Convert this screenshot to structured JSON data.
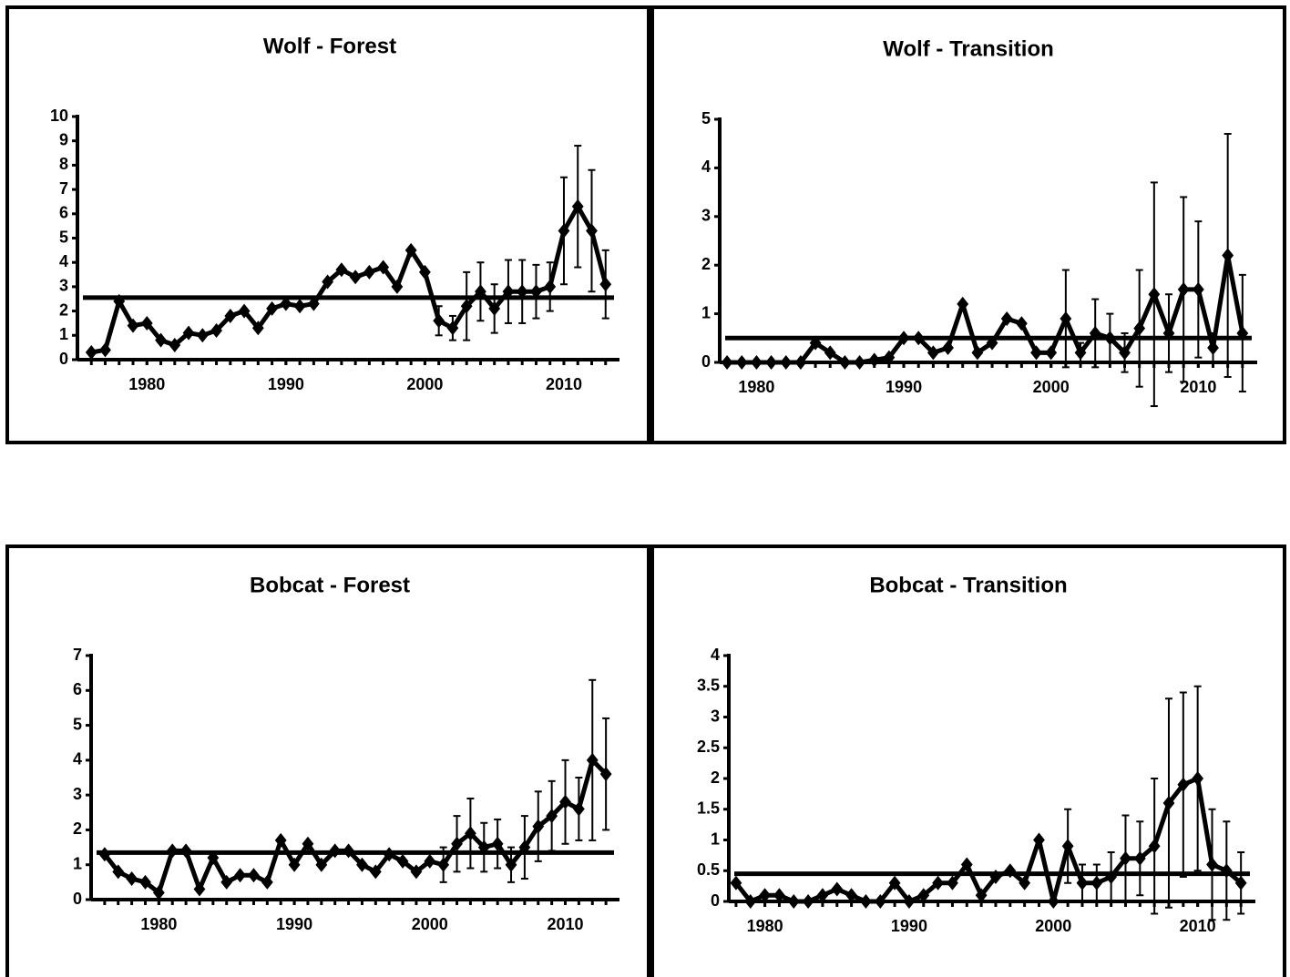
{
  "chart_data": [
    {
      "type": "line",
      "title": "Wolf - Forest",
      "color": "#000000",
      "x": [
        1976,
        1977,
        1978,
        1979,
        1980,
        1981,
        1982,
        1983,
        1984,
        1985,
        1986,
        1987,
        1988,
        1989,
        1990,
        1991,
        1992,
        1993,
        1994,
        1995,
        1996,
        1997,
        1998,
        1999,
        2000,
        2001,
        2002,
        2003,
        2004,
        2005,
        2006,
        2007,
        2008,
        2009,
        2010,
        2011,
        2012,
        2013
      ],
      "values": [
        0.3,
        0.4,
        2.4,
        1.4,
        1.5,
        0.8,
        0.6,
        1.1,
        1.0,
        1.2,
        1.8,
        2.0,
        1.3,
        2.1,
        2.3,
        2.2,
        2.3,
        3.2,
        3.7,
        3.4,
        3.6,
        3.8,
        3.0,
        4.5,
        3.6,
        1.6,
        1.3,
        2.2,
        2.8,
        2.1,
        2.8,
        2.8,
        2.8,
        3.0,
        5.3,
        6.3,
        5.3,
        3.1
      ],
      "errors": [
        null,
        null,
        null,
        null,
        null,
        null,
        null,
        null,
        null,
        null,
        null,
        null,
        null,
        null,
        null,
        null,
        null,
        null,
        null,
        null,
        null,
        null,
        null,
        null,
        null,
        0.6,
        0.5,
        1.4,
        1.2,
        1.0,
        1.3,
        1.3,
        1.1,
        1.0,
        2.2,
        2.5,
        2.5,
        1.4
      ],
      "mean": 2.55,
      "xlim": [
        1975,
        2014
      ],
      "xticks": [
        1980,
        1990,
        2000,
        2010
      ],
      "ylim": [
        0,
        10
      ],
      "yticks": [
        0,
        1,
        2,
        3,
        4,
        5,
        6,
        7,
        8,
        9,
        10
      ]
    },
    {
      "type": "line",
      "title": "Wolf - Transition",
      "color": "#000000",
      "x": [
        1978,
        1979,
        1980,
        1981,
        1982,
        1983,
        1984,
        1985,
        1986,
        1987,
        1988,
        1989,
        1990,
        1991,
        1992,
        1993,
        1994,
        1995,
        1996,
        1997,
        1998,
        1999,
        2000,
        2001,
        2002,
        2003,
        2004,
        2005,
        2006,
        2007,
        2008,
        2009,
        2010,
        2011,
        2012,
        2013
      ],
      "values": [
        0,
        0,
        0,
        0,
        0,
        0,
        0.4,
        0.2,
        0,
        0,
        0.05,
        0.1,
        0.5,
        0.5,
        0.2,
        0.3,
        1.2,
        0.2,
        0.4,
        0.9,
        0.8,
        0.2,
        0.2,
        0.9,
        0.2,
        0.6,
        0.5,
        0.2,
        0.7,
        1.4,
        0.6,
        1.5,
        1.5,
        0.3,
        2.2,
        0.6
      ],
      "errors": [
        null,
        null,
        null,
        null,
        null,
        null,
        null,
        null,
        null,
        null,
        null,
        null,
        null,
        null,
        null,
        null,
        null,
        null,
        null,
        null,
        null,
        null,
        null,
        1.0,
        0.2,
        0.7,
        0.5,
        0.4,
        1.2,
        2.3,
        0.8,
        1.9,
        1.4,
        0.3,
        2.5,
        1.2
      ],
      "mean": 0.5,
      "xlim": [
        1977.5,
        2014
      ],
      "xticks": [
        1980,
        1990,
        2000,
        2010
      ],
      "ylim": [
        0,
        5
      ],
      "yticks": [
        0,
        1,
        2,
        3,
        4,
        5
      ]
    },
    {
      "type": "line",
      "title": "Bobcat - Forest",
      "color": "#000000",
      "x": [
        1976,
        1977,
        1978,
        1979,
        1980,
        1981,
        1982,
        1983,
        1984,
        1985,
        1986,
        1987,
        1988,
        1989,
        1990,
        1991,
        1992,
        1993,
        1994,
        1995,
        1996,
        1997,
        1998,
        1999,
        2000,
        2001,
        2002,
        2003,
        2004,
        2005,
        2006,
        2007,
        2008,
        2009,
        2010,
        2011,
        2012,
        2013
      ],
      "values": [
        1.3,
        0.8,
        0.6,
        0.5,
        0.2,
        1.4,
        1.4,
        0.3,
        1.2,
        0.5,
        0.7,
        0.7,
        0.5,
        1.7,
        1.0,
        1.6,
        1.0,
        1.4,
        1.4,
        1.0,
        0.8,
        1.3,
        1.1,
        0.8,
        1.1,
        1.0,
        1.6,
        1.9,
        1.5,
        1.6,
        1.0,
        1.5,
        2.1,
        2.4,
        2.8,
        2.6,
        4.0,
        3.6
      ],
      "errors": [
        null,
        null,
        null,
        null,
        null,
        null,
        null,
        null,
        null,
        null,
        null,
        null,
        null,
        null,
        null,
        null,
        null,
        null,
        null,
        null,
        null,
        null,
        null,
        null,
        null,
        0.5,
        0.8,
        1.0,
        0.7,
        0.7,
        0.5,
        0.9,
        1.0,
        1.0,
        1.2,
        0.9,
        2.3,
        1.6
      ],
      "mean": 1.35,
      "xlim": [
        1975,
        2014
      ],
      "xticks": [
        1980,
        1990,
        2000,
        2010
      ],
      "ylim": [
        0,
        7
      ],
      "yticks": [
        0,
        1,
        2,
        3,
        4,
        5,
        6,
        7
      ]
    },
    {
      "type": "line",
      "title": "Bobcat - Transition",
      "color": "#000000",
      "x": [
        1978,
        1979,
        1980,
        1981,
        1982,
        1983,
        1984,
        1985,
        1986,
        1987,
        1988,
        1989,
        1990,
        1991,
        1992,
        1993,
        1994,
        1995,
        1996,
        1997,
        1998,
        1999,
        2000,
        2001,
        2002,
        2003,
        2004,
        2005,
        2006,
        2007,
        2008,
        2009,
        2010,
        2011,
        2012,
        2013
      ],
      "values": [
        0.3,
        0,
        0.1,
        0.1,
        0,
        0,
        0.1,
        0.2,
        0.1,
        0,
        0,
        0.3,
        0,
        0.1,
        0.3,
        0.3,
        0.6,
        0.1,
        0.4,
        0.5,
        0.3,
        1.0,
        0,
        0.9,
        0.3,
        0.3,
        0.4,
        0.7,
        0.7,
        0.9,
        1.6,
        1.9,
        2.0,
        0.6,
        0.5,
        0.3
      ],
      "errors": [
        null,
        null,
        null,
        null,
        null,
        null,
        null,
        null,
        null,
        null,
        null,
        null,
        null,
        null,
        null,
        null,
        null,
        null,
        null,
        null,
        null,
        null,
        null,
        0.6,
        0.3,
        0.3,
        0.4,
        0.7,
        0.6,
        1.1,
        1.7,
        1.5,
        1.5,
        0.9,
        0.8,
        0.5
      ],
      "mean": 0.45,
      "xlim": [
        1977.5,
        2014
      ],
      "xticks": [
        1980,
        1990,
        2000,
        2010
      ],
      "ylim": [
        0,
        4
      ],
      "yticks": [
        0,
        0.5,
        1,
        1.5,
        2,
        2.5,
        3,
        3.5,
        4
      ]
    }
  ]
}
